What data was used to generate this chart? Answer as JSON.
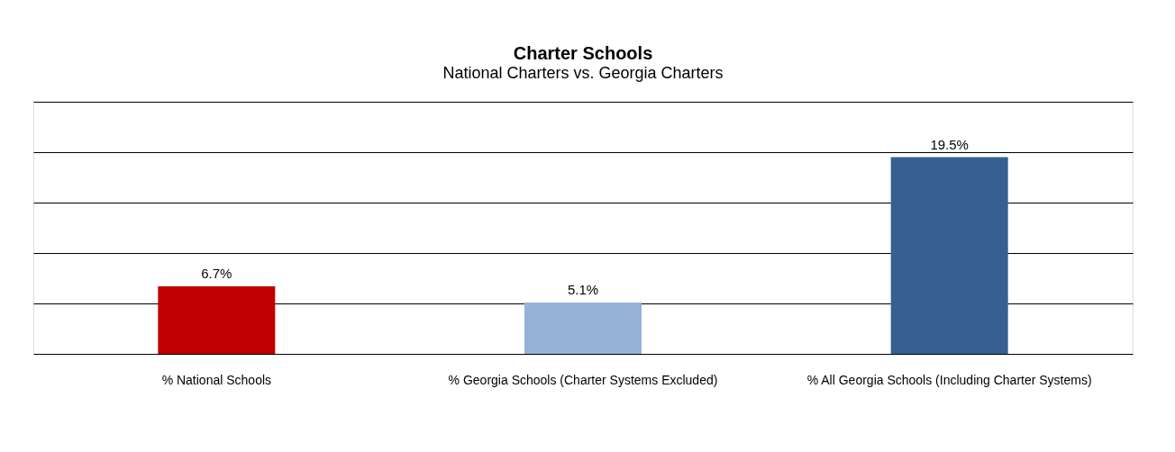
{
  "chart_data": {
    "type": "bar",
    "title": "Charter Schools",
    "subtitle": "National Charters vs. Georgia Charters",
    "categories": [
      "% National Schools",
      "% Georgia Schools (Charter Systems Excluded)",
      "% All Georgia Schools (Including Charter Systems)"
    ],
    "values": [
      6.7,
      5.1,
      19.5
    ],
    "colors": [
      "#c00000",
      "#95b3d7",
      "#366092"
    ],
    "value_labels": [
      "6.7%",
      "5.1%",
      "19.5%"
    ],
    "ylim": [
      0,
      25
    ],
    "yticks": [
      {
        "value": 0,
        "label": null
      },
      {
        "value": 5,
        "label": null
      },
      {
        "value": 10,
        "label": null
      },
      {
        "value": 15,
        "label": null
      },
      {
        "value": 20,
        "label": null
      },
      {
        "value": 25,
        "label": null
      }
    ],
    "grid": "y",
    "legend": false,
    "tick_labels": "x"
  }
}
